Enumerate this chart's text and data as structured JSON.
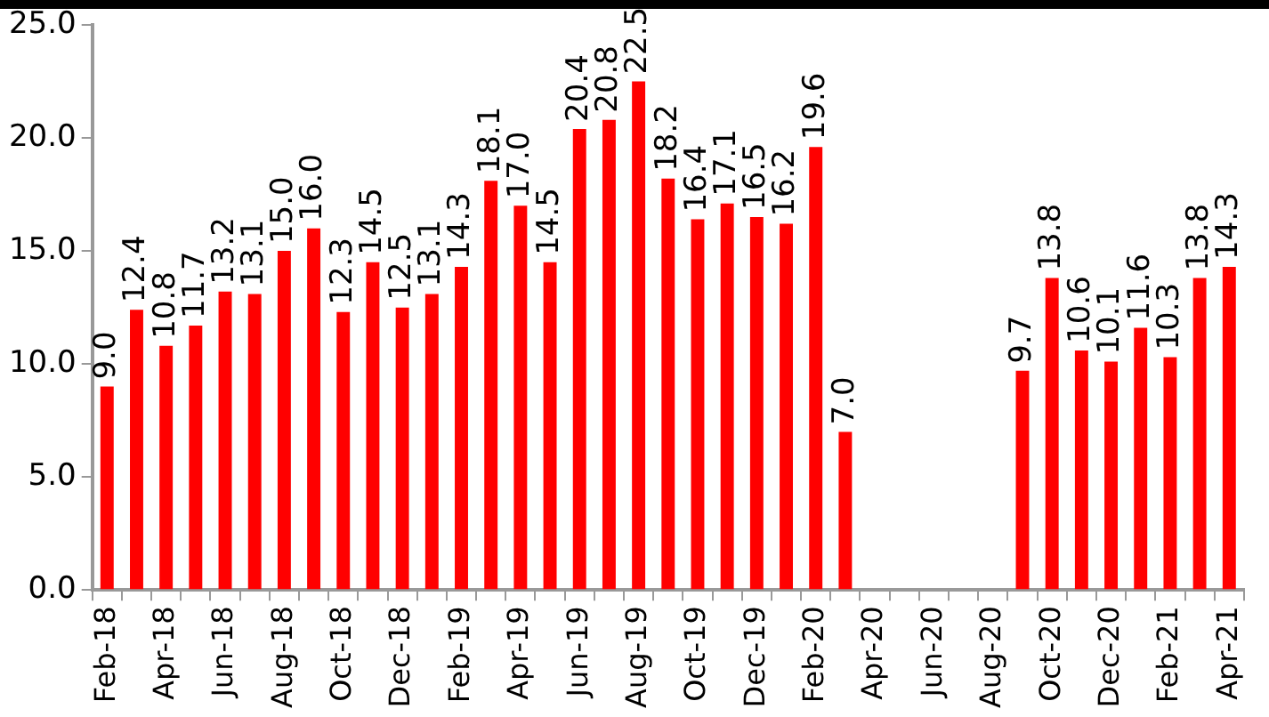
{
  "chart_data": {
    "type": "bar",
    "categories": [
      "Feb-18",
      null,
      "Apr-18",
      null,
      "Jun-18",
      null,
      "Aug-18",
      null,
      "Oct-18",
      null,
      "Dec-18",
      null,
      "Feb-19",
      null,
      "Apr-19",
      null,
      "Jun-19",
      null,
      "Aug-19",
      null,
      "Oct-19",
      null,
      "Dec-19",
      null,
      "Feb-20",
      null,
      "Apr-20",
      null,
      "Jun-20",
      null,
      "Aug-20",
      null,
      "Oct-20",
      null,
      "Dec-20",
      null,
      "Feb-21",
      null,
      "Apr-21"
    ],
    "values": [
      9.0,
      12.4,
      10.8,
      11.7,
      13.2,
      13.1,
      15.0,
      16.0,
      12.3,
      14.5,
      12.5,
      13.1,
      14.3,
      18.1,
      17.0,
      14.5,
      20.4,
      20.8,
      22.5,
      18.2,
      16.4,
      17.1,
      16.5,
      16.2,
      19.6,
      7.0,
      null,
      null,
      null,
      null,
      null,
      9.7,
      13.8,
      10.6,
      10.1,
      11.6,
      10.3,
      13.8,
      14.3
    ],
    "value_labels": [
      "9.0",
      "12.4",
      "10.8",
      "11.7",
      "13.2",
      "13.1",
      "15.0",
      "16.0",
      "12.3",
      "14.5",
      "12.5",
      "13.1",
      "14.3",
      "18.1",
      "17.0",
      "14.5",
      "20.4",
      "20.8",
      "22.5",
      "18.2",
      "16.4",
      "17.1",
      "16.5",
      "16.2",
      "19.6",
      "7.0",
      null,
      null,
      null,
      null,
      null,
      "9.7",
      "13.8",
      "10.6",
      "10.1",
      "11.6",
      "10.3",
      "13.8",
      "14.3"
    ],
    "color": "#ff0000",
    "ylim": [
      0,
      25
    ],
    "yticks": [
      {
        "value": 0,
        "label": "0.0"
      },
      {
        "value": 5,
        "label": "5.0"
      },
      {
        "value": 10,
        "label": "10.0"
      },
      {
        "value": 15,
        "label": "15.0"
      },
      {
        "value": 20,
        "label": "20.0"
      },
      {
        "value": 25,
        "label": "25.0"
      }
    ],
    "grid": false,
    "legend": false
  }
}
